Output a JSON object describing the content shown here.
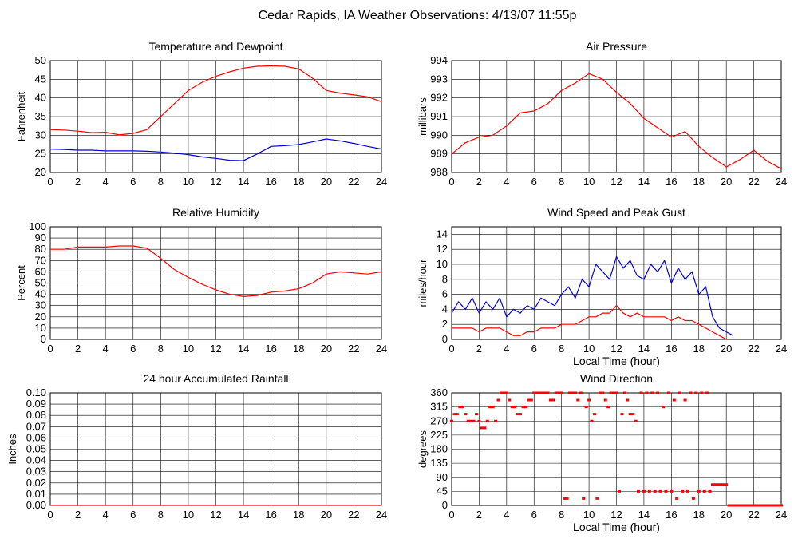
{
  "page_title": "Cedar Rapids, IA Weather Observations: 4/13/07 11:55p",
  "colors": {
    "red": "#ff0000",
    "blue": "#0000dd",
    "grid": "#000000",
    "axis": "#000000",
    "text": "#000000"
  },
  "chart_data": [
    {
      "id": "temp",
      "type": "line",
      "title": "Temperature and Dewpoint",
      "xlabel": "",
      "ylabel": "Fahrenheit",
      "xlim": [
        0,
        24
      ],
      "ylim": [
        20,
        50
      ],
      "x_ticks": [
        0,
        2,
        4,
        6,
        8,
        10,
        12,
        14,
        16,
        18,
        20,
        22,
        24
      ],
      "x_tick_labels": [
        "0",
        "2",
        "4",
        "6",
        "8",
        "10",
        "12",
        "14",
        "16",
        "18",
        "20",
        "22",
        "24"
      ],
      "y_ticks": [
        20,
        25,
        30,
        35,
        40,
        45,
        50
      ],
      "y_tick_labels": [
        "20",
        "25",
        "30",
        "35",
        "40",
        "45",
        "50"
      ],
      "grid": true,
      "series": [
        {
          "color": "red",
          "style": "line",
          "x": [
            0,
            1,
            2,
            3,
            4,
            5,
            6,
            7,
            8,
            9,
            10,
            11,
            12,
            13,
            14,
            15,
            16,
            17,
            18,
            19,
            20,
            21,
            22,
            23,
            24
          ],
          "y": [
            31.5,
            31.4,
            31.1,
            30.7,
            30.8,
            30.1,
            30.5,
            31.5,
            35.0,
            38.5,
            42.0,
            44.2,
            45.8,
            47.0,
            48.0,
            48.5,
            48.6,
            48.5,
            47.8,
            45.3,
            42.0,
            41.3,
            40.8,
            40.3,
            39.0
          ]
        },
        {
          "color": "blue",
          "style": "line",
          "x": [
            0,
            1,
            2,
            3,
            4,
            5,
            6,
            7,
            8,
            9,
            10,
            11,
            12,
            13,
            14,
            15,
            16,
            17,
            18,
            19,
            20,
            21,
            22,
            23,
            24
          ],
          "y": [
            26.3,
            26.2,
            26.0,
            26.0,
            25.8,
            25.8,
            25.8,
            25.7,
            25.5,
            25.2,
            24.8,
            24.2,
            23.8,
            23.3,
            23.2,
            25.0,
            27.0,
            27.2,
            27.5,
            28.2,
            29.0,
            28.5,
            27.8,
            27.0,
            26.3
          ]
        }
      ]
    },
    {
      "id": "pressure",
      "type": "line",
      "title": "Air Pressure",
      "xlabel": "",
      "ylabel": "millibars",
      "xlim": [
        0,
        24
      ],
      "ylim": [
        988,
        994
      ],
      "x_ticks": [
        0,
        2,
        4,
        6,
        8,
        10,
        12,
        14,
        16,
        18,
        20,
        22,
        24
      ],
      "x_tick_labels": [
        "0",
        "2",
        "4",
        "6",
        "8",
        "10",
        "12",
        "14",
        "16",
        "18",
        "20",
        "22",
        "24"
      ],
      "y_ticks": [
        988,
        989,
        990,
        991,
        992,
        993,
        994
      ],
      "y_tick_labels": [
        "988",
        "989",
        "990",
        "991",
        "992",
        "993",
        "994"
      ],
      "grid": true,
      "series": [
        {
          "color": "red",
          "style": "line",
          "x": [
            0,
            1,
            2,
            3,
            4,
            5,
            6,
            7,
            8,
            9,
            10,
            11,
            12,
            13,
            14,
            15,
            16,
            17,
            18,
            19,
            20,
            21,
            22,
            23,
            24
          ],
          "y": [
            989.0,
            989.6,
            989.9,
            990.0,
            990.5,
            991.2,
            991.3,
            991.7,
            992.4,
            992.8,
            993.3,
            993.0,
            992.3,
            991.7,
            990.9,
            990.4,
            989.9,
            990.2,
            989.4,
            988.8,
            988.3,
            988.7,
            989.2,
            988.6,
            988.2
          ]
        }
      ]
    },
    {
      "id": "humidity",
      "type": "line",
      "title": "Relative Humidity",
      "xlabel": "",
      "ylabel": "Percent",
      "xlim": [
        0,
        24
      ],
      "ylim": [
        0,
        100
      ],
      "x_ticks": [
        0,
        2,
        4,
        6,
        8,
        10,
        12,
        14,
        16,
        18,
        20,
        22,
        24
      ],
      "x_tick_labels": [
        "0",
        "2",
        "4",
        "6",
        "8",
        "10",
        "12",
        "14",
        "16",
        "18",
        "20",
        "22",
        "24"
      ],
      "y_ticks": [
        0,
        10,
        20,
        30,
        40,
        50,
        60,
        70,
        80,
        90,
        100
      ],
      "y_tick_labels": [
        "0",
        "10",
        "20",
        "30",
        "40",
        "50",
        "60",
        "70",
        "80",
        "90",
        "100"
      ],
      "grid": true,
      "series": [
        {
          "color": "red",
          "style": "line",
          "x": [
            0,
            1,
            2,
            3,
            4,
            5,
            6,
            7,
            8,
            9,
            10,
            11,
            12,
            13,
            14,
            15,
            16,
            17,
            18,
            19,
            20,
            21,
            22,
            23,
            24
          ],
          "y": [
            80,
            80,
            82,
            82,
            82,
            83,
            83,
            81,
            72,
            62,
            55,
            49,
            44,
            40,
            38,
            39,
            42,
            43,
            45,
            50,
            58,
            60,
            59,
            58,
            60
          ]
        }
      ]
    },
    {
      "id": "wind_speed",
      "type": "line",
      "title": "Wind Speed and Peak Gust",
      "xlabel": "Local Time (hour)",
      "ylabel": "miles/hour",
      "xlim": [
        0,
        24
      ],
      "ylim": [
        0,
        15
      ],
      "x_ticks": [
        0,
        2,
        4,
        6,
        8,
        10,
        12,
        14,
        16,
        18,
        20,
        22,
        24
      ],
      "x_tick_labels": [
        "0",
        "2",
        "4",
        "6",
        "8",
        "10",
        "12",
        "14",
        "16",
        "18",
        "20",
        "22",
        "24"
      ],
      "y_ticks": [
        0,
        2,
        4,
        6,
        8,
        10,
        12,
        14
      ],
      "y_tick_labels": [
        "0",
        "2",
        "4",
        "6",
        "8",
        "10",
        "12",
        "14"
      ],
      "grid": true,
      "series": [
        {
          "color": "blue",
          "style": "line",
          "x": [
            0,
            0.5,
            1,
            1.5,
            2,
            2.5,
            3,
            3.5,
            4,
            4.5,
            5,
            5.5,
            6,
            6.5,
            7,
            7.5,
            8,
            8.5,
            9,
            9.5,
            10,
            10.5,
            11,
            11.5,
            12,
            12.5,
            13,
            13.5,
            14,
            14.5,
            15,
            15.5,
            16,
            16.5,
            17,
            17.5,
            18,
            18.5,
            19,
            19.5,
            20,
            20.5
          ],
          "y": [
            3.5,
            5,
            4,
            5.5,
            3.5,
            5,
            4,
            5.5,
            3,
            4,
            3.5,
            4.5,
            4,
            5.5,
            5,
            4.5,
            6,
            7,
            5.5,
            8,
            7,
            10,
            9,
            8,
            11,
            9.5,
            10.5,
            8.5,
            8,
            10,
            9,
            10.5,
            7.5,
            9.5,
            8,
            9,
            6,
            7,
            3,
            1.5,
            1,
            0.5
          ]
        },
        {
          "color": "red",
          "style": "line",
          "x": [
            0,
            0.5,
            1,
            1.5,
            2,
            2.5,
            3,
            3.5,
            4,
            4.5,
            5,
            5.5,
            6,
            6.5,
            7,
            7.5,
            8,
            8.5,
            9,
            9.5,
            10,
            10.5,
            11,
            11.5,
            12,
            12.5,
            13,
            13.5,
            14,
            14.5,
            15,
            15.5,
            16,
            16.5,
            17,
            17.5,
            18,
            18.5,
            19,
            19.5,
            20
          ],
          "y": [
            1.5,
            1.5,
            1.5,
            1.5,
            1,
            1.5,
            1.5,
            1.5,
            1,
            0.5,
            0.5,
            1,
            1,
            1.5,
            1.5,
            1.5,
            2,
            2,
            2,
            2.5,
            3,
            3,
            3.5,
            3.5,
            4.5,
            3.5,
            3,
            3.5,
            3,
            3,
            3,
            3,
            2.5,
            3,
            2.5,
            2.5,
            2,
            1.5,
            1,
            0.5,
            0
          ]
        }
      ]
    },
    {
      "id": "rain",
      "type": "line",
      "title": "24 hour Accumulated Rainfall",
      "xlabel": "",
      "ylabel": "Inches",
      "xlim": [
        0,
        24
      ],
      "ylim": [
        0,
        0.1
      ],
      "x_ticks": [
        0,
        2,
        4,
        6,
        8,
        10,
        12,
        14,
        16,
        18,
        20,
        22,
        24
      ],
      "x_tick_labels": [
        "0",
        "2",
        "4",
        "6",
        "8",
        "10",
        "12",
        "14",
        "16",
        "18",
        "20",
        "22",
        "24"
      ],
      "y_ticks": [
        0,
        0.01,
        0.02,
        0.03,
        0.04,
        0.05,
        0.06,
        0.07,
        0.08,
        0.09,
        0.1
      ],
      "y_tick_labels": [
        "0.00",
        "0.01",
        "0.02",
        "0.03",
        "0.04",
        "0.05",
        "0.06",
        "0.07",
        "0.08",
        "0.09",
        "0.10"
      ],
      "grid": true,
      "series": [
        {
          "color": "red",
          "style": "line",
          "x": [
            0,
            24
          ],
          "y": [
            0,
            0
          ]
        }
      ]
    },
    {
      "id": "wind_dir",
      "type": "scatter",
      "title": "Wind Direction",
      "xlabel": "Local Time (hour)",
      "ylabel": "degrees",
      "xlim": [
        0,
        24
      ],
      "ylim": [
        0,
        360
      ],
      "x_ticks": [
        0,
        2,
        4,
        6,
        8,
        10,
        12,
        14,
        16,
        18,
        20,
        22,
        24
      ],
      "x_tick_labels": [
        "0",
        "2",
        "4",
        "6",
        "8",
        "10",
        "12",
        "14",
        "16",
        "18",
        "20",
        "22",
        "24"
      ],
      "y_ticks": [
        0,
        45,
        90,
        135,
        180,
        225,
        270,
        315,
        360
      ],
      "y_tick_labels": [
        "0",
        "45",
        "90",
        "135",
        "180",
        "225",
        "270",
        "315",
        "360"
      ],
      "grid": true,
      "series": [
        {
          "color": "red",
          "style": "points",
          "x": [
            0.0,
            0.2,
            0.4,
            0.6,
            0.8,
            1.0,
            1.2,
            1.4,
            1.6,
            1.8,
            2.0,
            2.2,
            2.4,
            2.6,
            2.8,
            3.0,
            3.2,
            3.4,
            3.6,
            3.8,
            4.0,
            4.2,
            4.4,
            4.6,
            4.8,
            5.0,
            5.2,
            5.4,
            5.6,
            5.8,
            6.0,
            6.2,
            6.4,
            6.6,
            6.8,
            7.0,
            7.2,
            7.4,
            7.6,
            7.8,
            8.0,
            8.2,
            8.4,
            8.6,
            8.8,
            9.0,
            9.2,
            9.4,
            9.6,
            9.8,
            10.0,
            10.2,
            10.4,
            10.6,
            10.8,
            11.0,
            11.2,
            11.4,
            11.6,
            11.8,
            12.0,
            12.2,
            12.4,
            12.6,
            12.8,
            13.0,
            13.2,
            13.4,
            13.6,
            13.8,
            14.0,
            14.2,
            14.4,
            14.6,
            14.8,
            15.0,
            15.2,
            15.4,
            15.6,
            15.8,
            16.0,
            16.2,
            16.4,
            16.6,
            16.8,
            17.0,
            17.2,
            17.4,
            17.6,
            17.8,
            18.0,
            18.2,
            18.4,
            18.6,
            18.8,
            19.0,
            19.2,
            19.4,
            19.6,
            19.8,
            20.0,
            20.2,
            20.4,
            20.6,
            20.8,
            21.0,
            21.2,
            21.4,
            21.6,
            21.8,
            22.0,
            22.2,
            22.4,
            22.6,
            22.8,
            23.0,
            23.2,
            23.4,
            23.6,
            23.8,
            24.0
          ],
          "y": [
            270,
            292,
            292,
            315,
            315,
            292,
            270,
            270,
            270,
            292,
            270,
            248,
            248,
            270,
            315,
            315,
            270,
            337,
            360,
            360,
            360,
            337,
            315,
            315,
            292,
            292,
            315,
            315,
            337,
            337,
            360,
            360,
            360,
            360,
            360,
            360,
            337,
            337,
            360,
            360,
            360,
            22,
            22,
            360,
            360,
            360,
            337,
            360,
            22,
            315,
            337,
            270,
            292,
            22,
            360,
            360,
            337,
            315,
            360,
            360,
            360,
            45,
            292,
            360,
            337,
            292,
            292,
            270,
            45,
            360,
            45,
            360,
            45,
            360,
            45,
            360,
            45,
            315,
            45,
            360,
            45,
            337,
            22,
            360,
            45,
            337,
            45,
            360,
            22,
            360,
            45,
            360,
            45,
            360,
            45,
            67,
            67,
            67,
            67,
            67,
            67,
            0,
            0,
            0,
            0,
            0,
            0,
            0,
            0,
            0,
            0,
            0,
            0,
            0,
            0,
            0,
            0,
            0,
            0,
            0,
            0
          ]
        }
      ]
    }
  ]
}
